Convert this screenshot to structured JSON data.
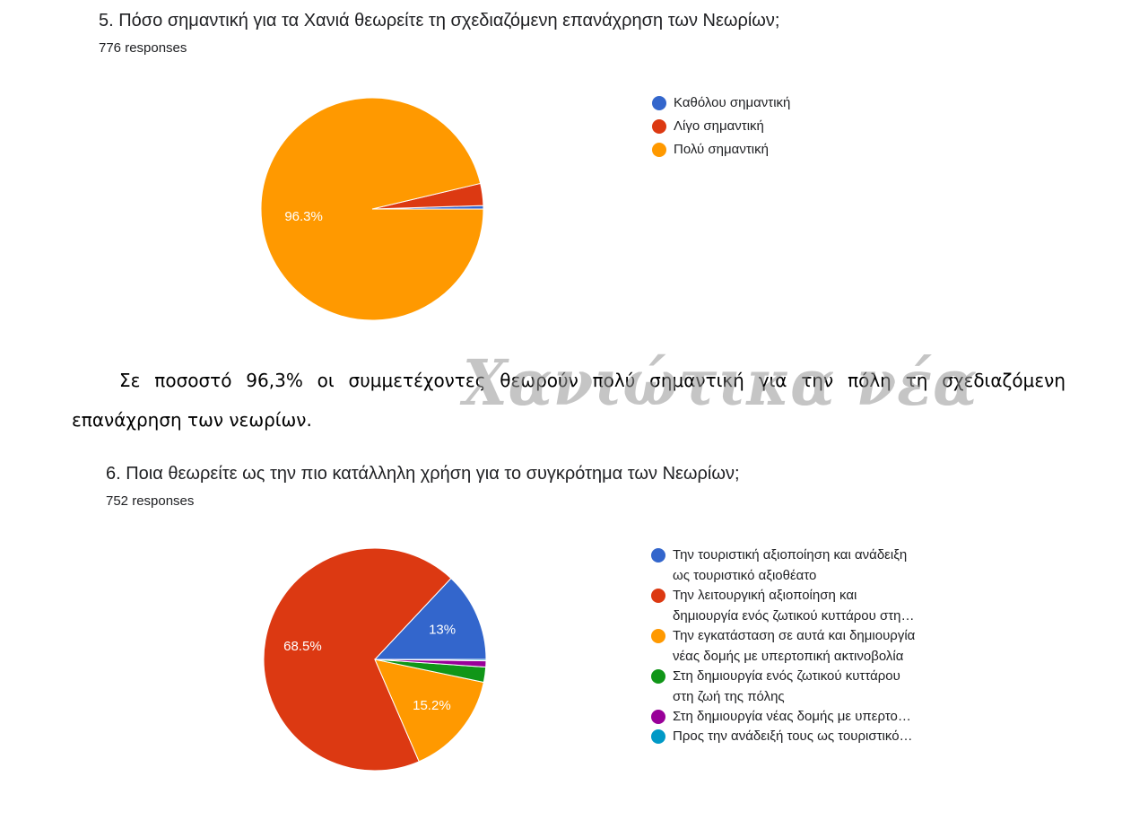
{
  "questions": [
    {
      "title": "5. Πόσο σημαντική για τα Χανιά θεωρείτε τη σχεδιαζόμενη επανάχρηση των Νεωρίων;",
      "responses": "776 responses"
    },
    {
      "title": "6. Ποια θεωρείτε ως την πιο κατάλληλη χρήση για το συγκρότημα των Νεωρίων;",
      "responses": "752 responses"
    }
  ],
  "paragraph": "Σε ποσοστό 96,3% οι συμμετέχοντες θεωρούν πολύ σημαντική για την πόλη τη σχεδιαζόμενη επανάχρηση των νεωρίων.",
  "watermark": "Χανιώτικα νέα",
  "chart_data": [
    {
      "type": "pie",
      "title": "5. Πόσο σημαντική για τα Χανιά θεωρείτε τη σχεδιαζόμενη επανάχρηση των Νεωρίων;",
      "subtitle": "776 responses",
      "legend_position": "right",
      "categories": [
        "Καθόλου σημαντική",
        "Λίγο σημαντική",
        "Πολύ σημαντική"
      ],
      "values": [
        0.5,
        3.2,
        96.3
      ],
      "labels": [
        "",
        "",
        "96.3%"
      ],
      "colors": [
        "#3366cc",
        "#dc3912",
        "#ff9900"
      ]
    },
    {
      "type": "pie",
      "title": "6. Ποια θεωρείτε ως την πιο κατάλληλη χρήση για το συγκρότημα των Νεωρίων;",
      "subtitle": "752 responses",
      "legend_position": "right",
      "categories": [
        "Την τουριστική αξιοποίηση και ανάδειξη\nως τουριστικό αξιοθέατο",
        "Την λειτουργική αξιοποίηση και\nδημιουργία ενός ζωτικού κυττάρου στη…",
        "Την εγκατάσταση σε αυτά και δημιουργία\nνέας δομής με υπερτοπική ακτινοβολία",
        "Στη δημιουργία ενός ζωτικού κυττάρου\nστη ζωή της πόλης",
        "Στη δημιουργία νέας δομής με υπερτο…",
        "Προς την ανάδειξή τους ως τουριστικό…"
      ],
      "values": [
        13.0,
        68.5,
        15.2,
        2.2,
        0.9,
        0.2
      ],
      "labels": [
        "13%",
        "68.5%",
        "15.2%",
        "",
        "",
        ""
      ],
      "colors": [
        "#3366cc",
        "#dc3912",
        "#ff9900",
        "#109618",
        "#990099",
        "#0099c6"
      ]
    }
  ]
}
